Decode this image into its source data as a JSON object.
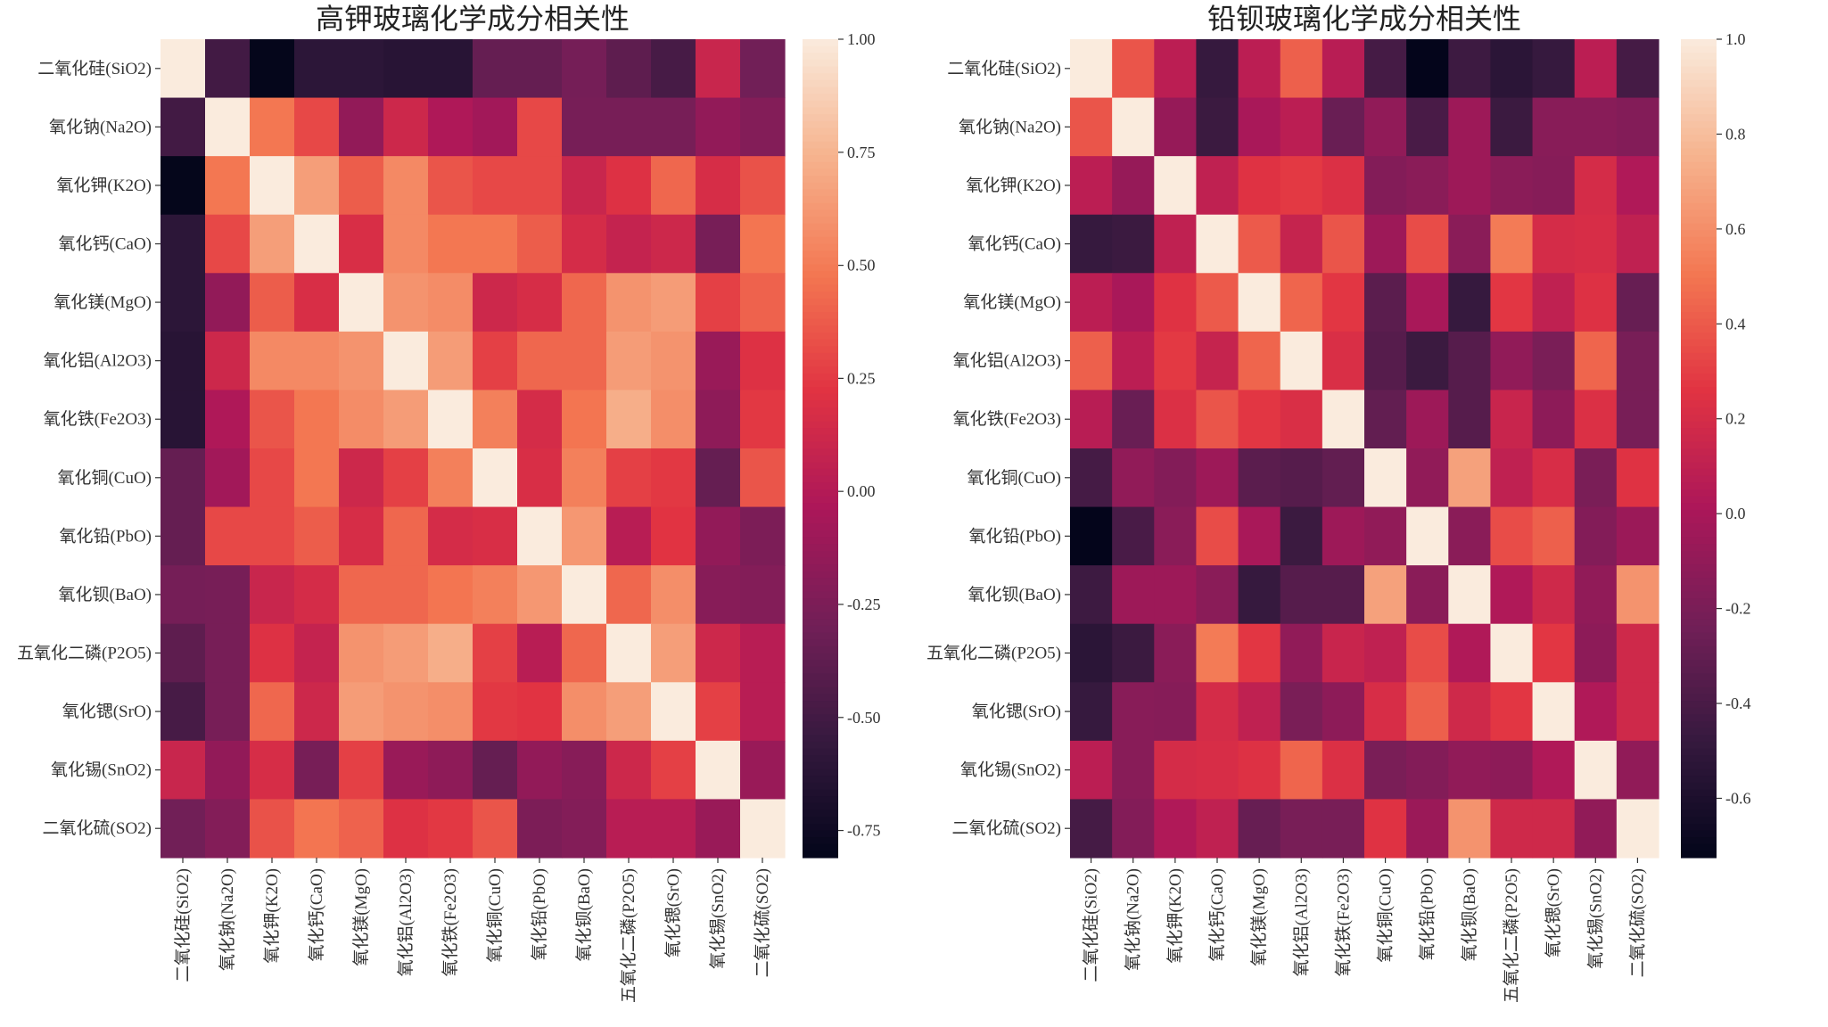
{
  "chart_data": [
    {
      "type": "heatmap",
      "title": "高钾玻璃化学成分相关性",
      "colormap": "rocket",
      "vmin": -0.81,
      "vmax": 1.0,
      "colorbar_ticks": [
        "1.00",
        "0.75",
        "0.50",
        "0.25",
        "0.00",
        "-0.25",
        "-0.50",
        "-0.75"
      ],
      "labels": [
        "二氧化硅(SiO2)",
        "氧化钠(Na2O)",
        "氧化钾(K2O)",
        "氧化钙(CaO)",
        "氧化镁(MgO)",
        "氧化铝(Al2O3)",
        "氧化铁(Fe2O3)",
        "氧化铜(CuO)",
        "氧化铅(PbO)",
        "氧化钡(BaO)",
        "五氧化二磷(P2O5)",
        "氧化锶(SrO)",
        "氧化锡(SnO2)",
        "二氧化硫(SO2)"
      ],
      "values": [
        [
          1,
          -0.5,
          -0.8,
          -0.6,
          -0.6,
          -0.62,
          -0.62,
          -0.35,
          -0.35,
          -0.28,
          -0.38,
          -0.48,
          0.1,
          -0.3
        ],
        [
          -0.5,
          1,
          0.48,
          0.3,
          -0.15,
          0.12,
          -0.02,
          -0.08,
          0.3,
          -0.27,
          -0.27,
          -0.27,
          -0.15,
          -0.22
        ],
        [
          -0.8,
          0.48,
          1,
          0.65,
          0.38,
          0.56,
          0.35,
          0.3,
          0.3,
          0.1,
          0.2,
          0.42,
          0.17,
          0.34
        ],
        [
          -0.6,
          0.3,
          0.65,
          1,
          0.18,
          0.56,
          0.48,
          0.48,
          0.38,
          0.16,
          0.08,
          0.12,
          -0.27,
          0.47
        ],
        [
          -0.6,
          -0.15,
          0.38,
          0.18,
          1,
          0.6,
          0.57,
          0.12,
          0.17,
          0.42,
          0.6,
          0.64,
          0.27,
          0.4
        ],
        [
          -0.62,
          0.12,
          0.56,
          0.56,
          0.6,
          1,
          0.64,
          0.27,
          0.42,
          0.42,
          0.64,
          0.6,
          -0.12,
          0.2
        ],
        [
          -0.62,
          -0.02,
          0.35,
          0.48,
          0.57,
          0.64,
          1,
          0.52,
          0.16,
          0.47,
          0.72,
          0.58,
          -0.17,
          0.24
        ],
        [
          -0.35,
          -0.08,
          0.3,
          0.48,
          0.12,
          0.27,
          0.52,
          1,
          0.18,
          0.52,
          0.27,
          0.24,
          -0.35,
          0.35
        ],
        [
          -0.35,
          0.3,
          0.3,
          0.38,
          0.17,
          0.42,
          0.16,
          0.18,
          1,
          0.62,
          0.02,
          0.22,
          -0.15,
          -0.25
        ],
        [
          -0.28,
          -0.27,
          0.1,
          0.16,
          0.42,
          0.42,
          0.47,
          0.52,
          0.62,
          1,
          0.42,
          0.58,
          -0.2,
          -0.22
        ],
        [
          -0.38,
          -0.27,
          0.2,
          0.08,
          0.6,
          0.64,
          0.72,
          0.27,
          0.02,
          0.42,
          1,
          0.65,
          0.12,
          0.02
        ],
        [
          -0.48,
          -0.27,
          0.42,
          0.12,
          0.64,
          0.6,
          0.58,
          0.24,
          0.22,
          0.58,
          0.65,
          1,
          0.27,
          0.02
        ],
        [
          0.1,
          -0.15,
          0.17,
          -0.27,
          0.27,
          -0.12,
          -0.17,
          -0.35,
          -0.15,
          -0.2,
          0.12,
          0.27,
          1,
          -0.12
        ],
        [
          -0.3,
          -0.22,
          0.34,
          0.47,
          0.4,
          0.2,
          0.24,
          0.35,
          -0.25,
          -0.22,
          0.02,
          0.02,
          -0.12,
          1
        ]
      ]
    },
    {
      "type": "heatmap",
      "title": "铅钡玻璃化学成分相关性",
      "colormap": "rocket",
      "vmin": -0.725,
      "vmax": 1.0,
      "colorbar_ticks": [
        "1.0",
        "0.8",
        "0.6",
        "0.4",
        "0.2",
        "0.0",
        "-0.2",
        "-0.4",
        "-0.6"
      ],
      "labels": [
        "二氧化硅(SiO2)",
        "氧化钠(Na2O)",
        "氧化钾(K2O)",
        "氧化钙(CaO)",
        "氧化镁(MgO)",
        "氧化铝(Al2O3)",
        "氧化铁(Fe2O3)",
        "氧化铜(CuO)",
        "氧化铅(PbO)",
        "氧化钡(BaO)",
        "五氧化二磷(P2O5)",
        "氧化锶(SrO)",
        "氧化锡(SnO2)",
        "二氧化硫(SO2)"
      ],
      "values": [
        [
          1,
          0.38,
          0.08,
          -0.48,
          0.08,
          0.42,
          0.07,
          -0.42,
          -0.72,
          -0.45,
          -0.53,
          -0.48,
          0.08,
          -0.42
        ],
        [
          0.38,
          1,
          -0.08,
          -0.46,
          0.0,
          0.08,
          -0.27,
          -0.1,
          -0.4,
          -0.05,
          -0.46,
          -0.14,
          -0.14,
          -0.16
        ],
        [
          0.08,
          -0.08,
          1,
          0.1,
          0.25,
          0.28,
          0.23,
          -0.16,
          -0.13,
          -0.05,
          -0.13,
          -0.15,
          0.2,
          0.03
        ],
        [
          -0.48,
          -0.46,
          0.1,
          1,
          0.4,
          0.13,
          0.38,
          -0.05,
          0.35,
          -0.13,
          0.52,
          0.2,
          0.21,
          0.1
        ],
        [
          0.08,
          0.0,
          0.25,
          0.4,
          1,
          0.44,
          0.27,
          -0.33,
          0.0,
          -0.48,
          0.27,
          0.1,
          0.24,
          -0.28
        ],
        [
          0.42,
          0.08,
          0.28,
          0.13,
          0.44,
          1,
          0.22,
          -0.35,
          -0.46,
          -0.35,
          -0.1,
          -0.2,
          0.44,
          -0.21
        ],
        [
          0.07,
          -0.27,
          0.23,
          0.38,
          0.27,
          0.22,
          1,
          -0.3,
          -0.05,
          -0.35,
          0.14,
          -0.12,
          0.23,
          -0.21
        ],
        [
          -0.42,
          -0.1,
          -0.16,
          -0.05,
          -0.33,
          -0.35,
          -0.3,
          1,
          -0.1,
          0.68,
          0.1,
          0.21,
          -0.2,
          0.25
        ],
        [
          -0.72,
          -0.4,
          -0.13,
          0.35,
          0.0,
          -0.46,
          -0.05,
          -0.1,
          1,
          -0.13,
          0.35,
          0.42,
          -0.16,
          -0.06
        ],
        [
          -0.45,
          -0.05,
          -0.05,
          -0.13,
          -0.48,
          -0.35,
          -0.35,
          0.68,
          -0.13,
          1,
          0.03,
          0.17,
          -0.1,
          0.62
        ],
        [
          -0.53,
          -0.46,
          -0.13,
          0.52,
          0.27,
          -0.1,
          0.14,
          0.1,
          0.35,
          0.03,
          1,
          0.27,
          -0.12,
          0.17
        ],
        [
          -0.48,
          -0.14,
          -0.15,
          0.2,
          0.1,
          -0.2,
          -0.12,
          0.21,
          0.42,
          0.17,
          0.27,
          1,
          0.03,
          0.17
        ],
        [
          0.08,
          -0.14,
          0.2,
          0.21,
          0.24,
          0.44,
          0.23,
          -0.2,
          -0.16,
          -0.1,
          -0.12,
          0.03,
          1,
          -0.1
        ],
        [
          -0.42,
          -0.16,
          0.03,
          0.1,
          -0.28,
          -0.21,
          -0.21,
          0.25,
          -0.06,
          0.62,
          0.17,
          0.17,
          -0.1,
          1
        ]
      ]
    }
  ]
}
